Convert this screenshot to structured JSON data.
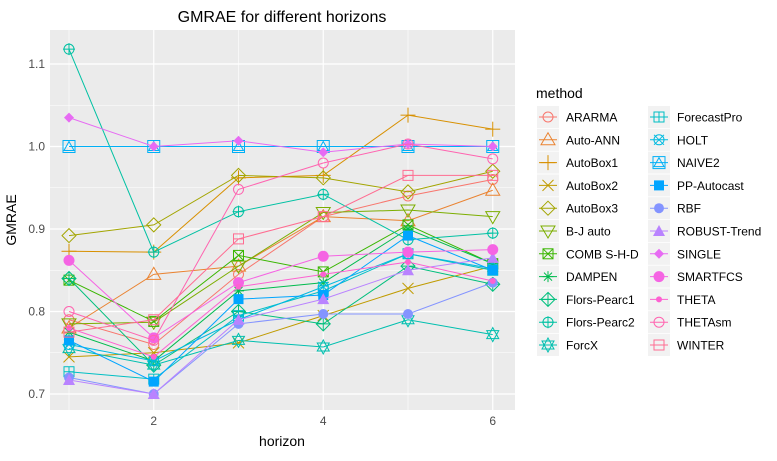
{
  "chart_data": {
    "type": "line",
    "title": "GMRAE for different horizons",
    "xlabel": "horizon",
    "ylabel": "GMRAE",
    "x": [
      1,
      2,
      3,
      4,
      5,
      6
    ],
    "xlim": [
      0.8,
      6.2
    ],
    "ylim": [
      0.68,
      1.14
    ],
    "xticks": [
      2,
      4,
      6
    ],
    "yticks": [
      0.7,
      0.8,
      0.9,
      1.0,
      1.1
    ],
    "ytick_labels": [
      "0.7",
      "0.8",
      "0.9",
      "1.0",
      "1.1"
    ],
    "xtick_labels": [
      "2",
      "4",
      "6"
    ],
    "grid": true,
    "legend_title": "method",
    "legend_placement": "right",
    "series": [
      {
        "name": "ARARMA",
        "color": "#F8766D",
        "shape": "circle-open",
        "values": [
          0.79,
          0.76,
          0.845,
          0.915,
          0.94,
          0.96
        ]
      },
      {
        "name": "Auto-ANN",
        "color": "#EA8331",
        "shape": "triangle-open",
        "values": [
          0.78,
          0.845,
          0.855,
          0.915,
          0.91,
          0.947
        ]
      },
      {
        "name": "AutoBox1",
        "color": "#D89000",
        "shape": "plus",
        "values": [
          0.873,
          0.872,
          0.962,
          0.965,
          1.038,
          1.021
        ]
      },
      {
        "name": "AutoBox2",
        "color": "#C09B00",
        "shape": "cross",
        "values": [
          0.745,
          0.75,
          0.762,
          0.795,
          0.828,
          0.855
        ]
      },
      {
        "name": "AutoBox3",
        "color": "#A3A500",
        "shape": "diamond-open",
        "values": [
          0.892,
          0.905,
          0.965,
          0.962,
          0.945,
          0.97
        ]
      },
      {
        "name": "B-J auto",
        "color": "#7CAE00",
        "shape": "triangle-down-open",
        "values": [
          0.785,
          0.787,
          0.855,
          0.92,
          0.923,
          0.915
        ]
      },
      {
        "name": "COMB S-H-D",
        "color": "#39B600",
        "shape": "square-cross",
        "values": [
          0.838,
          0.788,
          0.868,
          0.848,
          0.905,
          0.858
        ]
      },
      {
        "name": "DAMPEN",
        "color": "#00BB4E",
        "shape": "asterisk",
        "values": [
          0.775,
          0.74,
          0.825,
          0.835,
          0.9,
          0.858
        ]
      },
      {
        "name": "Flors-Pearc1",
        "color": "#00BF7D",
        "shape": "diamond-plus",
        "values": [
          0.84,
          0.735,
          0.8,
          0.785,
          0.855,
          0.833
        ]
      },
      {
        "name": "Flors-Pearc2",
        "color": "#00C1A3",
        "shape": "circle-plus",
        "values": [
          1.118,
          0.872,
          0.921,
          0.942,
          0.887,
          0.895
        ]
      },
      {
        "name": "ForcX",
        "color": "#00BFAF",
        "shape": "star-david",
        "values": [
          0.755,
          0.735,
          0.765,
          0.757,
          0.79,
          0.772
        ]
      },
      {
        "name": "ForecastPro",
        "color": "#00BFC4",
        "shape": "square-plus",
        "values": [
          0.727,
          0.718,
          0.795,
          0.825,
          0.87,
          0.85
        ]
      },
      {
        "name": "HOLT",
        "color": "#00BAE0",
        "shape": "circle-cross",
        "values": [
          0.76,
          0.74,
          0.79,
          0.83,
          0.87,
          0.852
        ]
      },
      {
        "name": "NAIVE2",
        "color": "#00B0F6",
        "shape": "square-triangle",
        "values": [
          1.0,
          1.0,
          1.0,
          1.0,
          1.0,
          1.0
        ]
      },
      {
        "name": "PP-Autocast",
        "color": "#00A5FF",
        "shape": "square-filled",
        "values": [
          0.765,
          0.715,
          0.815,
          0.82,
          0.892,
          0.85
        ]
      },
      {
        "name": "RBF",
        "color": "#8494FF",
        "shape": "circle-filled",
        "values": [
          0.72,
          0.7,
          0.785,
          0.797,
          0.797,
          0.835
        ]
      },
      {
        "name": "ROBUST-Trend",
        "color": "#B983FF",
        "shape": "triangle-filled",
        "values": [
          0.717,
          0.7,
          0.79,
          0.815,
          0.85,
          0.865
        ]
      },
      {
        "name": "SINGLE",
        "color": "#E76BF3",
        "shape": "diamond-filled",
        "values": [
          1.035,
          1.0,
          1.007,
          0.993,
          1.003,
          1.0
        ]
      },
      {
        "name": "SMARTFCS",
        "color": "#F564E3",
        "shape": "circle-filled-large",
        "values": [
          0.862,
          0.768,
          0.835,
          0.867,
          0.872,
          0.875
        ]
      },
      {
        "name": "THETA",
        "color": "#FD61D1",
        "shape": "point-small",
        "values": [
          0.78,
          0.745,
          0.83,
          0.845,
          0.86,
          0.837
        ]
      },
      {
        "name": "THETAsm",
        "color": "#FF64B0",
        "shape": "circle-open",
        "values": [
          0.8,
          0.765,
          0.948,
          0.98,
          1.003,
          0.985
        ]
      },
      {
        "name": "WINTER",
        "color": "#FF6C91",
        "shape": "square-minus",
        "values": [
          0.775,
          0.79,
          0.888,
          0.915,
          0.965,
          0.965
        ]
      }
    ]
  }
}
